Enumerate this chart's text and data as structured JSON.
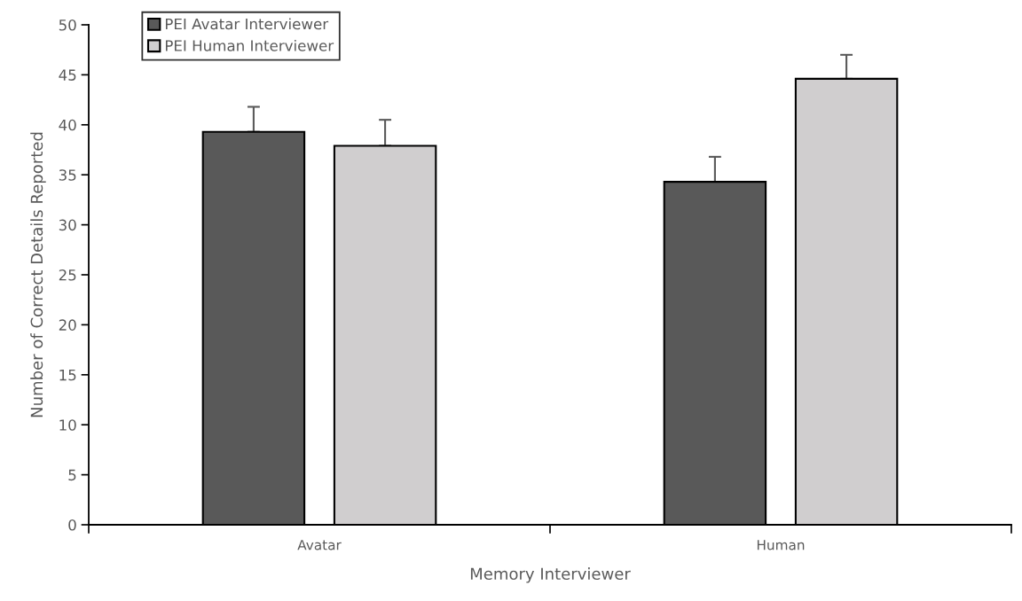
{
  "chart_data": {
    "type": "bar",
    "xlabel": "Memory Interviewer",
    "ylabel": "Number of Correct Details Reported",
    "categories": [
      "Avatar",
      "Human"
    ],
    "series": [
      {
        "name": "PEI Avatar Interviewer",
        "color": "#595959",
        "values": [
          39.3,
          34.3
        ],
        "errors": [
          2.5,
          2.5
        ]
      },
      {
        "name": "PEI Human Interviewer",
        "color": "#d0cecf",
        "values": [
          37.9,
          44.6
        ],
        "errors": [
          2.6,
          2.4
        ]
      }
    ],
    "ylim": [
      0,
      50
    ],
    "yticks": [
      0,
      5,
      10,
      15,
      20,
      25,
      30,
      35,
      40,
      45,
      50
    ],
    "grid": false,
    "legend": "top left"
  }
}
